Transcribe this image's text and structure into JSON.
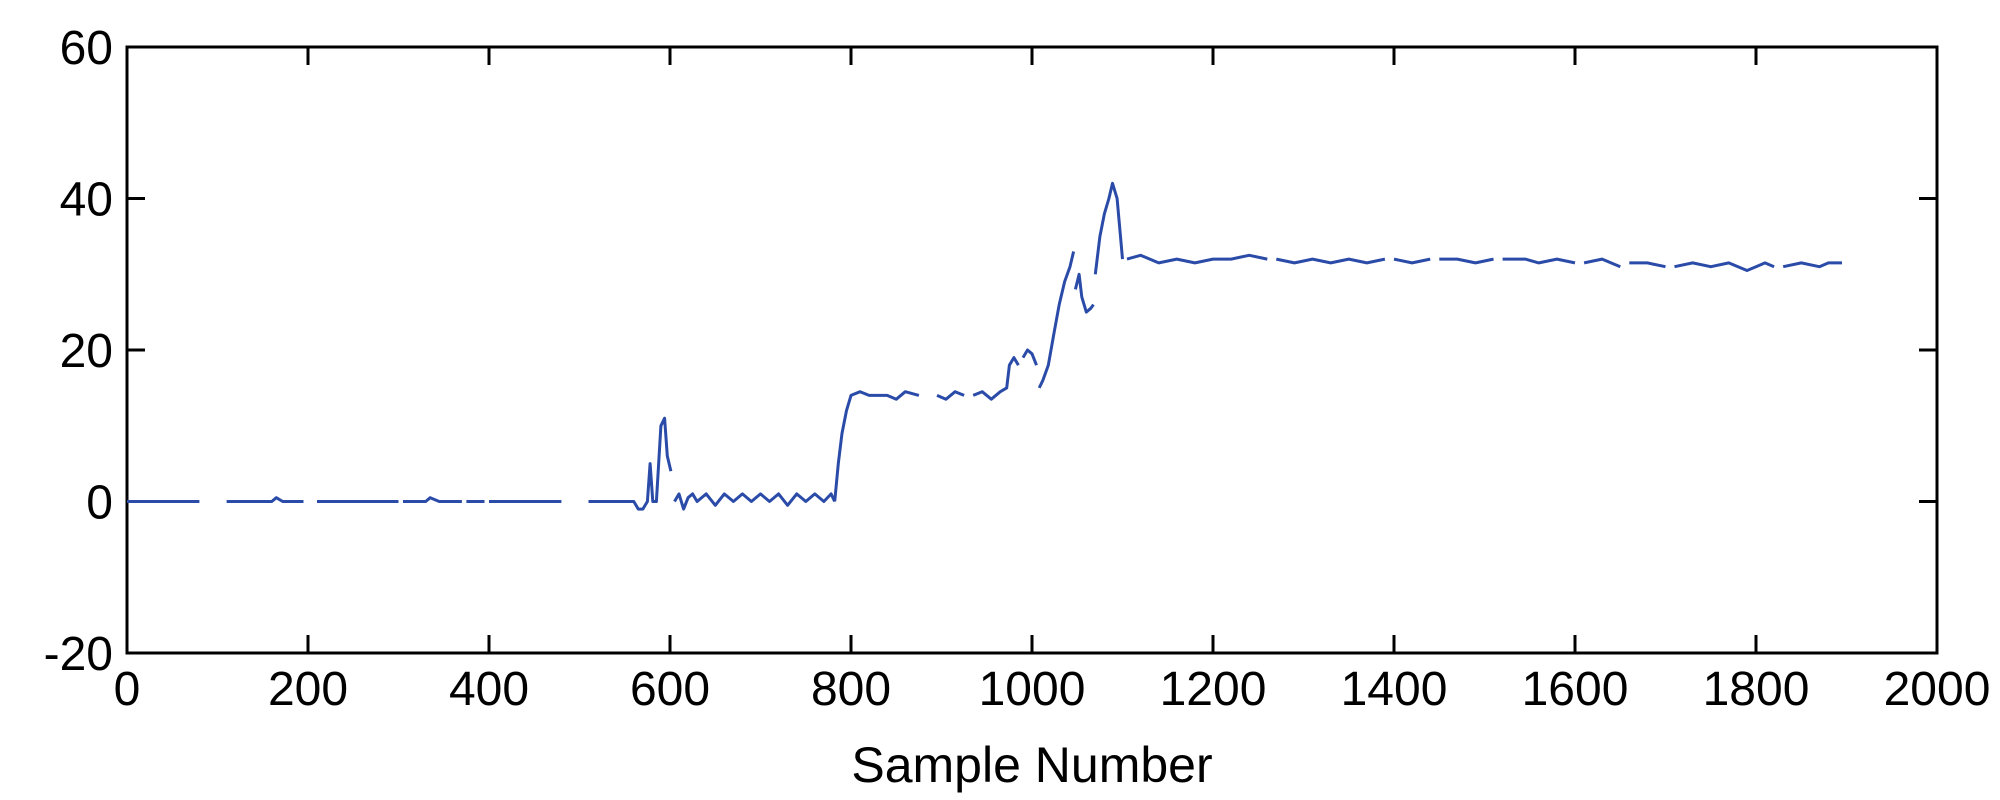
{
  "chart_data": {
    "type": "line",
    "title": "",
    "xlabel": "Sample Number",
    "ylabel": "",
    "xlim": [
      0,
      2000
    ],
    "ylim": [
      -20,
      60
    ],
    "xticks": [
      0,
      200,
      400,
      600,
      800,
      1000,
      1200,
      1400,
      1600,
      1800,
      2000
    ],
    "yticks": [
      -20,
      0,
      20,
      40,
      60
    ],
    "xtick_labels": [
      "0",
      "200",
      "400",
      "600",
      "800",
      "1000",
      "1200",
      "1400",
      "1600",
      "1800",
      "2000"
    ],
    "ytick_labels": [
      "-20",
      "0",
      "20",
      "40",
      "60"
    ],
    "grid": false,
    "line_color": "#2B4BA8",
    "series": [
      {
        "values_note_free": true,
        "segments": [
          [
            [
              0,
              0
            ],
            [
              80,
              0
            ]
          ],
          [
            [
              110,
              0
            ],
            [
              160,
              0
            ],
            [
              165,
              0.5
            ],
            [
              172,
              0
            ],
            [
              195,
              0
            ]
          ],
          [
            [
              210,
              0
            ],
            [
              300,
              0
            ]
          ],
          [
            [
              305,
              0
            ],
            [
              330,
              0
            ],
            [
              335,
              0.5
            ],
            [
              345,
              0
            ],
            [
              370,
              0
            ]
          ],
          [
            [
              375,
              0
            ],
            [
              395,
              0
            ]
          ],
          [
            [
              400,
              0
            ],
            [
              480,
              0
            ]
          ],
          [
            [
              510,
              0
            ],
            [
              560,
              0
            ],
            [
              565,
              -1
            ],
            [
              570,
              -1
            ],
            [
              575,
              0
            ],
            [
              578,
              5
            ],
            [
              581,
              0
            ],
            [
              585,
              0
            ],
            [
              590,
              10
            ],
            [
              594,
              11
            ],
            [
              597,
              6
            ],
            [
              601,
              4
            ]
          ],
          [
            [
              605,
              0
            ],
            [
              610,
              1
            ],
            [
              615,
              -1
            ],
            [
              620,
              0.5
            ],
            [
              625,
              1
            ],
            [
              630,
              0
            ],
            [
              640,
              1
            ],
            [
              650,
              -0.5
            ],
            [
              660,
              1
            ],
            [
              670,
              0
            ],
            [
              680,
              1
            ],
            [
              690,
              0
            ],
            [
              700,
              1
            ],
            [
              710,
              0
            ],
            [
              720,
              1
            ],
            [
              730,
              -0.5
            ],
            [
              740,
              1
            ],
            [
              750,
              0
            ],
            [
              760,
              1
            ],
            [
              770,
              0
            ],
            [
              778,
              1
            ],
            [
              782,
              0
            ]
          ],
          [
            [
              782,
              0
            ],
            [
              786,
              5
            ],
            [
              790,
              9
            ],
            [
              795,
              12
            ],
            [
              800,
              14
            ],
            [
              810,
              14.5
            ],
            [
              820,
              14
            ],
            [
              840,
              14
            ],
            [
              850,
              13.5
            ],
            [
              860,
              14.5
            ],
            [
              875,
              14
            ]
          ],
          [
            [
              895,
              14
            ],
            [
              905,
              13.5
            ],
            [
              915,
              14.5
            ],
            [
              925,
              14
            ]
          ],
          [
            [
              935,
              14
            ],
            [
              945,
              14.5
            ],
            [
              955,
              13.5
            ],
            [
              965,
              14.5
            ],
            [
              972,
              15
            ],
            [
              975,
              18
            ],
            [
              980,
              19
            ],
            [
              985,
              18
            ]
          ],
          [
            [
              990,
              19
            ],
            [
              995,
              20
            ],
            [
              1000,
              19.5
            ],
            [
              1005,
              18
            ]
          ],
          [
            [
              1008,
              15
            ],
            [
              1012,
              16
            ],
            [
              1018,
              18
            ],
            [
              1024,
              22
            ],
            [
              1030,
              26
            ],
            [
              1036,
              29
            ],
            [
              1042,
              31
            ],
            [
              1046,
              33
            ]
          ],
          [
            [
              1048,
              28
            ],
            [
              1052,
              30
            ],
            [
              1055,
              27
            ],
            [
              1060,
              25
            ],
            [
              1065,
              25.5
            ],
            [
              1068,
              26
            ]
          ],
          [
            [
              1070,
              30
            ],
            [
              1075,
              35
            ],
            [
              1080,
              38
            ],
            [
              1085,
              40
            ],
            [
              1089,
              42
            ],
            [
              1094,
              40
            ],
            [
              1097,
              36
            ],
            [
              1100,
              32
            ]
          ],
          [
            [
              1105,
              32
            ],
            [
              1120,
              32.5
            ],
            [
              1140,
              31.5
            ],
            [
              1160,
              32
            ],
            [
              1180,
              31.5
            ],
            [
              1200,
              32
            ],
            [
              1220,
              32
            ],
            [
              1240,
              32.5
            ],
            [
              1260,
              32
            ]
          ],
          [
            [
              1270,
              32
            ],
            [
              1290,
              31.5
            ],
            [
              1310,
              32
            ],
            [
              1330,
              31.5
            ],
            [
              1350,
              32
            ],
            [
              1370,
              31.5
            ],
            [
              1390,
              32
            ]
          ],
          [
            [
              1400,
              32
            ],
            [
              1420,
              31.5
            ],
            [
              1440,
              32
            ]
          ],
          [
            [
              1450,
              32
            ],
            [
              1470,
              32
            ],
            [
              1490,
              31.5
            ],
            [
              1510,
              32
            ]
          ],
          [
            [
              1520,
              32
            ],
            [
              1545,
              32
            ],
            [
              1560,
              31.5
            ],
            [
              1580,
              32
            ],
            [
              1600,
              31.5
            ]
          ],
          [
            [
              1610,
              31.5
            ],
            [
              1630,
              32
            ],
            [
              1650,
              31
            ]
          ],
          [
            [
              1660,
              31.5
            ],
            [
              1680,
              31.5
            ],
            [
              1700,
              31
            ]
          ],
          [
            [
              1710,
              31
            ],
            [
              1730,
              31.5
            ],
            [
              1750,
              31
            ],
            [
              1770,
              31.5
            ],
            [
              1790,
              30.5
            ],
            [
              1800,
              31
            ],
            [
              1810,
              31.5
            ],
            [
              1820,
              31
            ]
          ],
          [
            [
              1830,
              31
            ],
            [
              1850,
              31.5
            ],
            [
              1870,
              31
            ],
            [
              1880,
              31.5
            ],
            [
              1895,
              31.5
            ]
          ]
        ]
      }
    ]
  }
}
